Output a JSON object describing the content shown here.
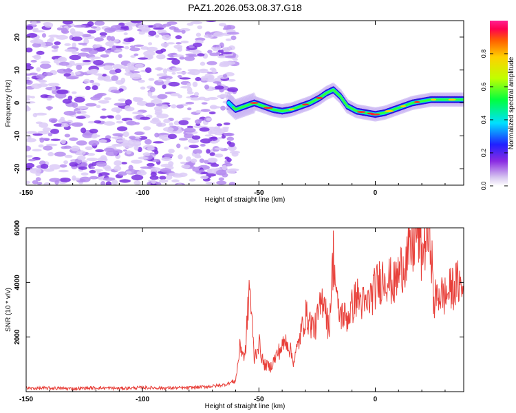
{
  "title": "PAZ1.2026.053.08.37.G18",
  "colors": {
    "snr_line": "#e8403a",
    "spectrogram_noise": "#9a66e6",
    "axis": "#000000"
  },
  "chart_data": [
    {
      "type": "heatmap",
      "xlabel": "Height of straight line (km)",
      "ylabel": "Frequency (Hz)",
      "xlim": [
        -150,
        38
      ],
      "ylim": [
        -25,
        25
      ],
      "xticks": [
        -150,
        -100,
        -50,
        0
      ],
      "xtick_labels": [
        "-150",
        "-100",
        "-50",
        "0"
      ],
      "yticks": [
        -20,
        -10,
        0,
        10,
        20
      ],
      "ytick_labels": [
        "-20",
        "-10",
        "0",
        "10",
        "20"
      ],
      "ridge": {
        "x": [
          -63,
          -60,
          -56,
          -52,
          -48,
          -44,
          -40,
          -36,
          -32,
          -28,
          -24,
          -21,
          -18,
          -15,
          -12,
          -8,
          -4,
          0,
          4,
          8,
          12,
          16,
          20,
          24,
          28,
          32,
          38
        ],
        "freq": [
          0,
          -2,
          -1,
          0,
          -1,
          -2,
          -2.5,
          -2,
          -1,
          0,
          1.5,
          3,
          4,
          2,
          -1,
          -2.5,
          -3,
          -3.5,
          -3,
          -2,
          -1,
          0,
          0.5,
          1,
          1,
          1,
          1
        ]
      },
      "noise_region_x": [
        -150,
        -63
      ],
      "colorbar": {
        "label": "Normalized spectral amplitude",
        "range": [
          0,
          1
        ],
        "ticks": [
          0.0,
          0.2,
          0.4,
          0.6,
          0.8
        ],
        "tick_labels": [
          "0.0",
          "0.2",
          "0.4",
          "0.6",
          "0.8"
        ]
      }
    },
    {
      "type": "line",
      "xlabel": "Height of straight line (km)",
      "ylabel": "SNR (10 * v/v)",
      "xlim": [
        -150,
        38
      ],
      "ylim": [
        0,
        6000
      ],
      "xticks": [
        -150,
        -100,
        -50,
        0
      ],
      "xtick_labels": [
        "-150",
        "-100",
        "-50",
        "0"
      ],
      "yticks": [
        2000,
        4000,
        6000
      ],
      "ytick_labels": [
        "2000",
        "4000",
        "6000"
      ],
      "series": [
        {
          "name": "SNR",
          "x": [
            -150,
            -140,
            -130,
            -120,
            -110,
            -100,
            -90,
            -80,
            -70,
            -65,
            -60,
            -58,
            -56,
            -54,
            -52,
            -50,
            -48,
            -45,
            -42,
            -38,
            -35,
            -30,
            -26,
            -22,
            -20,
            -18,
            -16,
            -12,
            -8,
            -4,
            0,
            4,
            8,
            12,
            16,
            18,
            20,
            22,
            24,
            25,
            27,
            30,
            33,
            36,
            38
          ],
          "y": [
            120,
            130,
            110,
            140,
            120,
            150,
            130,
            140,
            200,
            250,
            400,
            1700,
            1200,
            4000,
            1200,
            1800,
            1000,
            900,
            1400,
            1900,
            1100,
            2800,
            2300,
            3600,
            2200,
            5000,
            2900,
            2700,
            3500,
            3100,
            3800,
            4300,
            3900,
            4700,
            5200,
            6000,
            5000,
            5800,
            5600,
            3200,
            3600,
            3500,
            3800,
            4000,
            3600
          ]
        }
      ]
    }
  ]
}
